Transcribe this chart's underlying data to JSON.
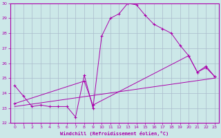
{
  "xlabel": "Windchill (Refroidissement éolien,°C)",
  "background_color": "#cce8e8",
  "grid_color": "#aabbcc",
  "line_color": "#aa00aa",
  "xlim": [
    -0.5,
    23.5
  ],
  "ylim": [
    22,
    30
  ],
  "yticks": [
    22,
    23,
    24,
    25,
    26,
    27,
    28,
    29,
    30
  ],
  "xticks": [
    0,
    1,
    2,
    3,
    4,
    5,
    6,
    7,
    8,
    9,
    10,
    11,
    12,
    13,
    14,
    15,
    16,
    17,
    18,
    19,
    20,
    21,
    22,
    23
  ],
  "series": [
    {
      "x": [
        0,
        1,
        2,
        3,
        4,
        5,
        6,
        7,
        8,
        9,
        10,
        11,
        12,
        13,
        14,
        15,
        16,
        17,
        18,
        19,
        20,
        21,
        22,
        23
      ],
      "y": [
        24.5,
        23.8,
        23.1,
        23.2,
        23.1,
        23.1,
        23.1,
        22.4,
        25.2,
        23.0,
        27.8,
        29.0,
        29.3,
        30.0,
        29.9,
        29.2,
        28.6,
        28.3,
        28.0,
        27.2,
        26.5,
        25.4,
        25.7,
        25.1
      ]
    },
    {
      "x": [
        0,
        8,
        9,
        20,
        21,
        22,
        23
      ],
      "y": [
        23.3,
        24.8,
        23.2,
        26.5,
        25.4,
        25.8,
        25.1
      ]
    },
    {
      "x": [
        0,
        23
      ],
      "y": [
        23.1,
        25.0
      ]
    }
  ]
}
